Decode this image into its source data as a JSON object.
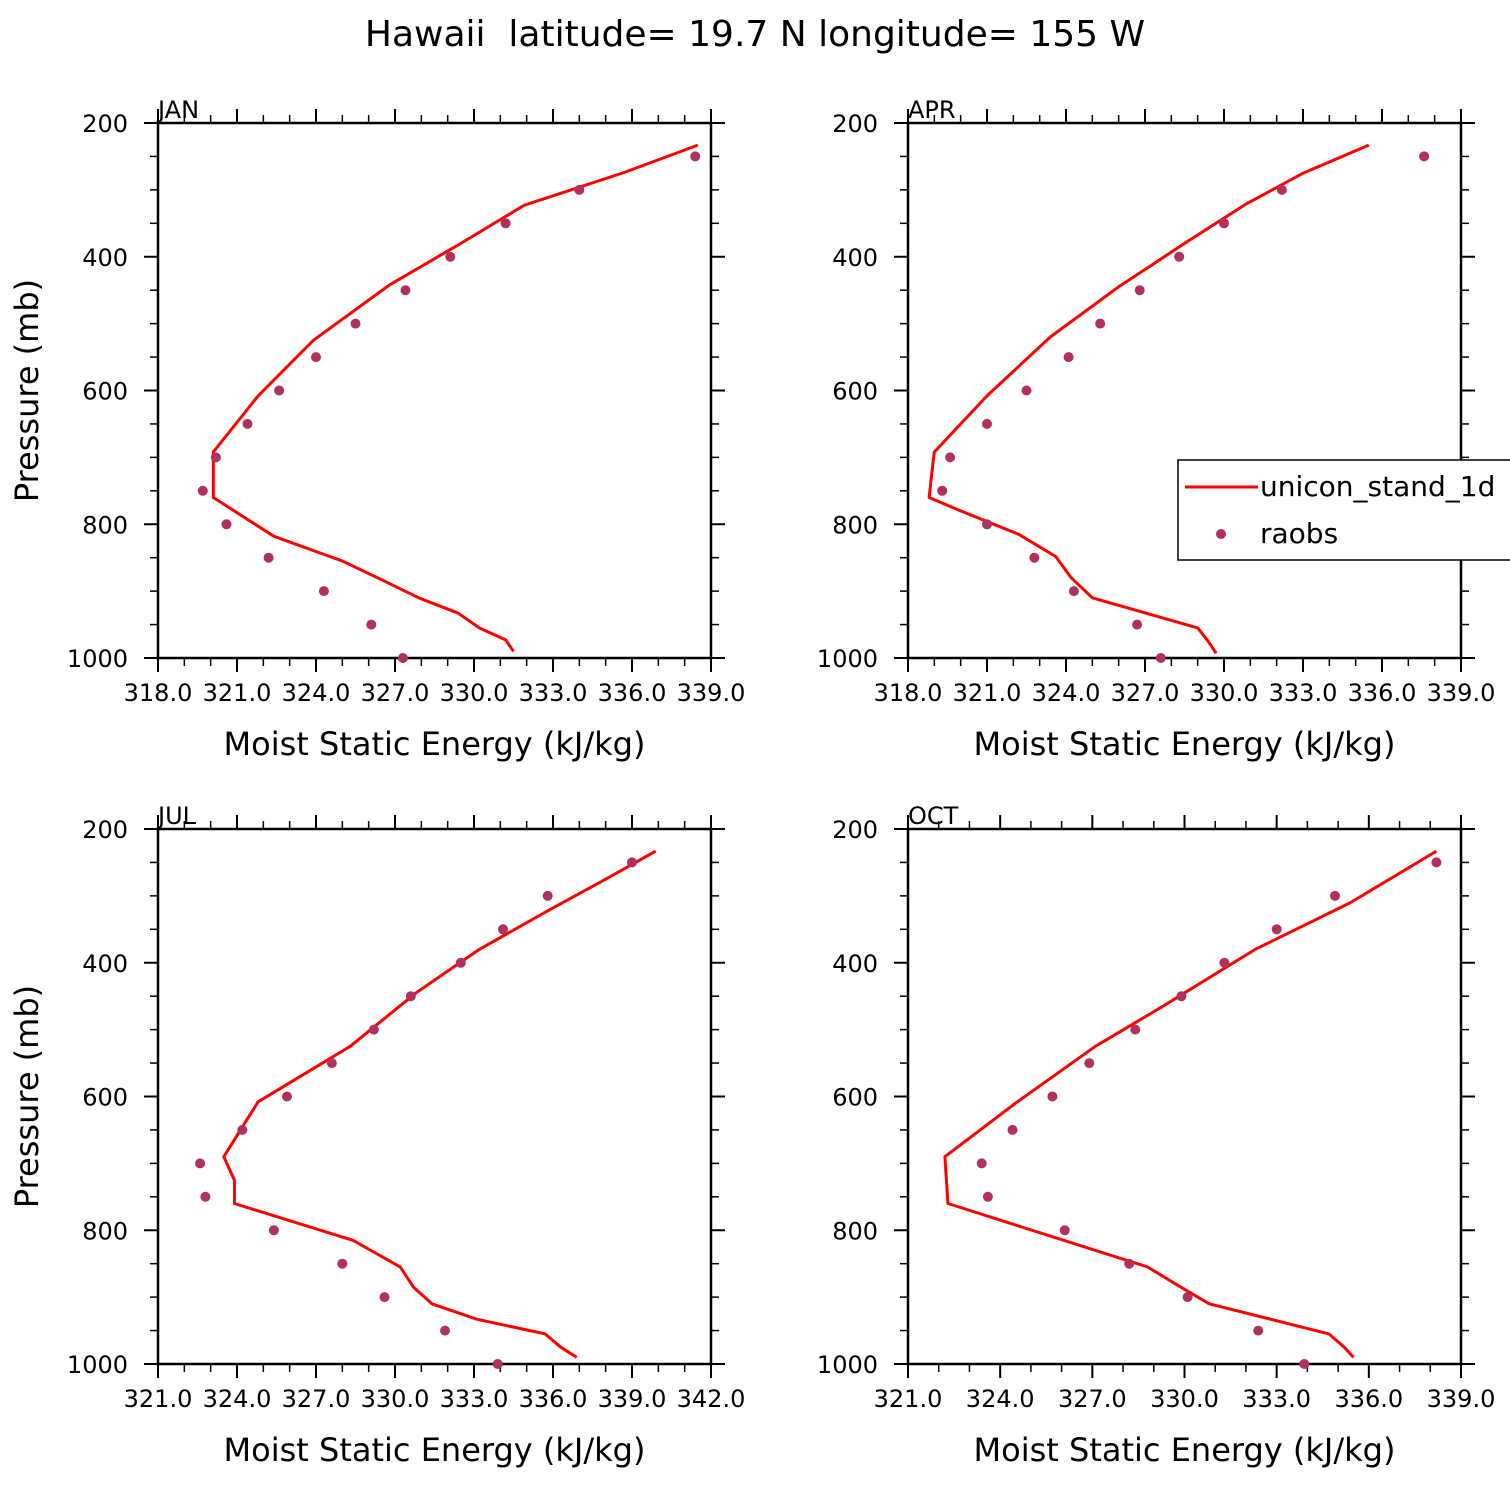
{
  "figure": {
    "title": "Hawaii  latitude= 19.7 N longitude= 155 W"
  },
  "legend": {
    "model_label": "unicon_stand_1d",
    "obs_label": "raobs"
  },
  "colors": {
    "model": "#ff0000",
    "obs": "#b03060",
    "axis": "#000000"
  },
  "chart_data": [
    {
      "type": "line",
      "panel": "JAN",
      "xlabel": "Moist Static Energy (kJ/kg)",
      "ylabel": "Pressure (mb)",
      "xlim": [
        318,
        339
      ],
      "xticks": [
        "318.0",
        "321.0",
        "324.0",
        "327.0",
        "330.0",
        "333.0",
        "336.0",
        "339.0"
      ],
      "ylim": [
        200,
        1000
      ],
      "yticks": [
        200,
        400,
        600,
        800,
        1000
      ],
      "y_inverted": true,
      "series": [
        {
          "name": "unicon_stand_1d",
          "kind": "line",
          "x": [
            338.5,
            335.7,
            331.9,
            329.5,
            326.8,
            323.9,
            321.8,
            320.1,
            320.1,
            320.1,
            322.4,
            325.0,
            326.5,
            327.9,
            329.4,
            330.2,
            331.2,
            331.5
          ],
          "y": [
            233,
            274,
            323,
            380,
            442,
            525,
            608,
            692,
            725,
            760,
            818,
            855,
            883,
            910,
            933,
            955,
            973,
            990
          ]
        },
        {
          "name": "raobs",
          "kind": "scatter",
          "x": [
            338.4,
            334.0,
            331.2,
            329.1,
            327.4,
            325.5,
            324.0,
            322.6,
            321.4,
            320.2,
            319.7,
            320.6,
            322.2,
            324.3,
            326.1,
            327.3
          ],
          "y": [
            250,
            300,
            350,
            400,
            450,
            500,
            550,
            600,
            650,
            700,
            750,
            800,
            850,
            900,
            950,
            1000
          ]
        }
      ]
    },
    {
      "type": "line",
      "panel": "APR",
      "xlabel": "Moist Static Energy (kJ/kg)",
      "ylabel": "",
      "xlim": [
        318,
        339
      ],
      "xticks": [
        "318.0",
        "321.0",
        "324.0",
        "327.0",
        "330.0",
        "333.0",
        "336.0",
        "339.0"
      ],
      "ylim": [
        200,
        1000
      ],
      "yticks": [
        200,
        400,
        600,
        800,
        1000
      ],
      "y_inverted": true,
      "series": [
        {
          "name": "unicon_stand_1d",
          "kind": "line",
          "x": [
            335.5,
            333.0,
            330.8,
            328.5,
            326.0,
            323.4,
            321.0,
            319.0,
            318.9,
            318.8,
            320.0,
            322.2,
            323.6,
            324.2,
            325.0,
            329.0,
            329.4,
            329.7
          ],
          "y": [
            233,
            275,
            322,
            380,
            445,
            520,
            608,
            692,
            725,
            760,
            780,
            815,
            848,
            880,
            910,
            955,
            975,
            993
          ]
        },
        {
          "name": "raobs",
          "kind": "scatter",
          "x": [
            337.6,
            332.2,
            330.0,
            328.3,
            326.8,
            325.3,
            324.1,
            322.5,
            321.0,
            319.6,
            319.3,
            321.0,
            322.8,
            324.3,
            326.7,
            327.6
          ],
          "y": [
            250,
            300,
            350,
            400,
            450,
            500,
            550,
            600,
            650,
            700,
            750,
            800,
            850,
            900,
            950,
            1000
          ]
        }
      ]
    },
    {
      "type": "line",
      "panel": "JUL",
      "xlabel": "Moist Static Energy (kJ/kg)",
      "ylabel": "Pressure (mb)",
      "xlim": [
        321,
        342
      ],
      "xticks": [
        "321.0",
        "324.0",
        "327.0",
        "330.0",
        "333.0",
        "336.0",
        "339.0",
        "342.0"
      ],
      "ylim": [
        200,
        1000
      ],
      "yticks": [
        200,
        400,
        600,
        800,
        1000
      ],
      "y_inverted": true,
      "series": [
        {
          "name": "unicon_stand_1d",
          "kind": "line",
          "x": [
            339.9,
            338.0,
            335.9,
            333.2,
            330.8,
            328.3,
            324.8,
            323.5,
            323.9,
            323.9,
            328.4,
            330.2,
            330.7,
            331.4,
            333.1,
            335.7,
            336.3,
            336.9
          ],
          "y": [
            233,
            275,
            320,
            380,
            445,
            525,
            608,
            690,
            725,
            760,
            815,
            855,
            885,
            910,
            933,
            955,
            975,
            990
          ]
        },
        {
          "name": "raobs",
          "kind": "scatter",
          "x": [
            339.0,
            335.8,
            334.1,
            332.5,
            330.6,
            329.2,
            327.6,
            325.9,
            324.2,
            322.6,
            322.8,
            325.4,
            328.0,
            329.6,
            331.9,
            333.9
          ],
          "y": [
            250,
            300,
            350,
            400,
            450,
            500,
            550,
            600,
            650,
            700,
            750,
            800,
            850,
            900,
            950,
            1000
          ]
        }
      ]
    },
    {
      "type": "line",
      "panel": "OCT",
      "xlabel": "Moist Static Energy (kJ/kg)",
      "ylabel": "",
      "xlim": [
        321,
        339
      ],
      "xticks": [
        "321.0",
        "324.0",
        "327.0",
        "330.0",
        "333.0",
        "336.0",
        "339.0"
      ],
      "ylim": [
        200,
        1000
      ],
      "yticks": [
        200,
        400,
        600,
        800,
        1000
      ],
      "y_inverted": true,
      "series": [
        {
          "name": "unicon_stand_1d",
          "kind": "line",
          "x": [
            338.2,
            335.4,
            332.3,
            329.3,
            327.1,
            324.5,
            322.2,
            322.3,
            328.8,
            329.7,
            330.8,
            334.7,
            335.2,
            335.5
          ],
          "y": [
            233,
            310,
            380,
            465,
            525,
            610,
            690,
            760,
            855,
            880,
            910,
            955,
            975,
            990
          ]
        },
        {
          "name": "raobs",
          "kind": "scatter",
          "x": [
            338.2,
            334.9,
            333.0,
            331.3,
            329.9,
            328.4,
            326.9,
            325.7,
            324.4,
            323.4,
            323.6,
            326.1,
            328.2,
            330.1,
            332.4,
            333.9
          ],
          "y": [
            250,
            300,
            350,
            400,
            450,
            500,
            550,
            600,
            650,
            700,
            750,
            800,
            850,
            900,
            950,
            1000
          ]
        }
      ]
    }
  ]
}
